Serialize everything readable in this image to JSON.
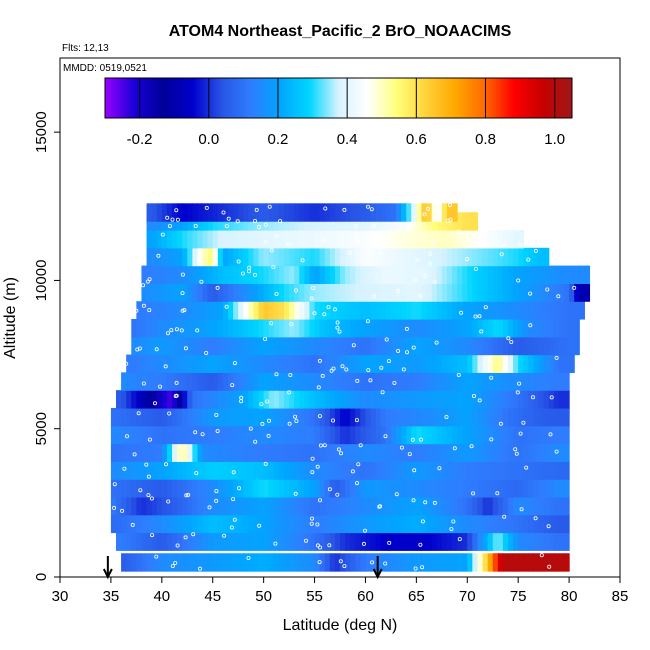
{
  "chart_data": {
    "type": "heatmap",
    "title": "ATOM4 Northeast_Pacific_2 BrO_NOAACIMS",
    "flights_label": "Flts: 12,13",
    "dates_label": "MMDD: 0519,0521",
    "xlabel": "Latitude (deg N)",
    "ylabel": "Altitude (m)",
    "xlim": [
      30,
      85
    ],
    "ylim": [
      0,
      17500
    ],
    "x_ticks": [
      "30",
      "35",
      "40",
      "45",
      "50",
      "55",
      "60",
      "65",
      "70",
      "75",
      "80",
      "85"
    ],
    "y_ticks": [
      "0",
      "5000",
      "10000",
      "15000"
    ],
    "colorbar": {
      "range": [
        -0.3,
        1.05
      ],
      "tick_labels": [
        "-0.2",
        "0.0",
        "0.2",
        "0.4",
        "0.6",
        "0.8",
        "1.0"
      ],
      "colors": [
        "#9a00ff",
        "#1a00d8",
        "#000099",
        "#0000cc",
        "#2855e6",
        "#2f7dff",
        "#00a6ff",
        "#00d5ff",
        "#d6f3ff",
        "#ffffff",
        "#ffff7a",
        "#ffd23a",
        "#ffa800",
        "#ff6a00",
        "#ff0000",
        "#c60000",
        "#a01818"
      ]
    },
    "arrows_at_latitude": [
      34.7,
      61.2
    ],
    "bands": [
      {
        "alt": 500,
        "lat": [
          36.0,
          80.0
        ],
        "values": [
          [
            36,
            0.05
          ],
          [
            40,
            0.15
          ],
          [
            45,
            0.18
          ],
          [
            50,
            0.22
          ],
          [
            55,
            0.15
          ],
          [
            57,
            0.0
          ],
          [
            60,
            0.12
          ],
          [
            65,
            0.18
          ],
          [
            70,
            0.2
          ],
          [
            73.5,
            1.0
          ],
          [
            78,
            1.0
          ]
        ]
      },
      {
        "alt": 1200,
        "lat": [
          35.5,
          80.0
        ],
        "values": [
          [
            36,
            0.12
          ],
          [
            40,
            0.05
          ],
          [
            45,
            0.18
          ],
          [
            50,
            0.2
          ],
          [
            55,
            0.1
          ],
          [
            58,
            0.0
          ],
          [
            62,
            -0.05
          ],
          [
            66,
            -0.05
          ],
          [
            70,
            0.0
          ],
          [
            73,
            0.35
          ],
          [
            75,
            0.15
          ],
          [
            79,
            0.1
          ]
        ]
      },
      {
        "alt": 1800,
        "lat": [
          35.0,
          80.0
        ],
        "values": [
          [
            35,
            0.08
          ],
          [
            40,
            0.15
          ],
          [
            45,
            0.25
          ],
          [
            50,
            0.2
          ],
          [
            55,
            0.12
          ],
          [
            60,
            0.18
          ],
          [
            65,
            0.22
          ],
          [
            70,
            0.15
          ],
          [
            75,
            0.1
          ],
          [
            79,
            0.05
          ]
        ]
      },
      {
        "alt": 2400,
        "lat": [
          35.0,
          80.0
        ],
        "values": [
          [
            35,
            0.12
          ],
          [
            38,
            0.0
          ],
          [
            41,
            0.05
          ],
          [
            45,
            0.15
          ],
          [
            50,
            0.2
          ],
          [
            55,
            0.1
          ],
          [
            60,
            0.15
          ],
          [
            65,
            0.2
          ],
          [
            70,
            0.1
          ],
          [
            72,
            0.0
          ],
          [
            75,
            0.15
          ],
          [
            79,
            0.1
          ]
        ]
      },
      {
        "alt": 3000,
        "lat": [
          35.0,
          80.0
        ],
        "values": [
          [
            35,
            0.1
          ],
          [
            40,
            0.05
          ],
          [
            45,
            0.15
          ],
          [
            50,
            0.3
          ],
          [
            55,
            0.2
          ],
          [
            57,
            0.05
          ],
          [
            60,
            0.18
          ],
          [
            65,
            0.15
          ],
          [
            70,
            0.12
          ],
          [
            75,
            0.08
          ],
          [
            79,
            0.15
          ]
        ]
      },
      {
        "alt": 3600,
        "lat": [
          35.0,
          80.0
        ],
        "values": [
          [
            35,
            0.15
          ],
          [
            40,
            0.2
          ],
          [
            45,
            0.28
          ],
          [
            50,
            0.25
          ],
          [
            55,
            0.15
          ],
          [
            60,
            0.1
          ],
          [
            65,
            0.18
          ],
          [
            70,
            0.12
          ],
          [
            75,
            0.1
          ],
          [
            79,
            0.08
          ]
        ]
      },
      {
        "alt": 4200,
        "lat": [
          35.0,
          80.0
        ],
        "values": [
          [
            35,
            0.1
          ],
          [
            40,
            0.12
          ],
          [
            42,
            0.55
          ],
          [
            44,
            0.15
          ],
          [
            50,
            0.12
          ],
          [
            55,
            0.1
          ],
          [
            60,
            0.15
          ],
          [
            65,
            0.12
          ],
          [
            70,
            0.18
          ],
          [
            75,
            0.1
          ],
          [
            79,
            0.15
          ]
        ]
      },
      {
        "alt": 4800,
        "lat": [
          35.0,
          80.0
        ],
        "values": [
          [
            35,
            0.15
          ],
          [
            40,
            0.1
          ],
          [
            45,
            0.12
          ],
          [
            50,
            0.15
          ],
          [
            55,
            0.12
          ],
          [
            58,
            0.0
          ],
          [
            62,
            0.1
          ],
          [
            65,
            0.3
          ],
          [
            70,
            0.2
          ],
          [
            75,
            0.1
          ],
          [
            79,
            0.12
          ]
        ]
      },
      {
        "alt": 5400,
        "lat": [
          35.0,
          80.0
        ],
        "values": [
          [
            35,
            0.1
          ],
          [
            40,
            0.05
          ],
          [
            45,
            0.18
          ],
          [
            50,
            0.2
          ],
          [
            55,
            0.1
          ],
          [
            58,
            -0.05
          ],
          [
            62,
            0.12
          ],
          [
            66,
            0.15
          ],
          [
            70,
            0.2
          ],
          [
            74,
            0.1
          ],
          [
            78,
            0.05
          ]
        ]
      },
      {
        "alt": 6000,
        "lat": [
          35.5,
          80.0
        ],
        "values": [
          [
            36,
            0.05
          ],
          [
            40,
            -0.2
          ],
          [
            41,
            -0.25
          ],
          [
            43,
            0.1
          ],
          [
            48,
            0.2
          ],
          [
            51,
            0.35
          ],
          [
            55,
            0.25
          ],
          [
            60,
            0.15
          ],
          [
            65,
            0.18
          ],
          [
            70,
            0.2
          ],
          [
            75,
            0.1
          ],
          [
            79,
            0.0
          ]
        ]
      },
      {
        "alt": 6600,
        "lat": [
          36.0,
          80.0
        ],
        "values": [
          [
            36,
            0.15
          ],
          [
            40,
            0.12
          ],
          [
            45,
            0.05
          ],
          [
            50,
            0.2
          ],
          [
            55,
            0.15
          ],
          [
            60,
            0.1
          ],
          [
            65,
            0.12
          ],
          [
            70,
            0.2
          ],
          [
            75,
            0.15
          ],
          [
            79,
            0.12
          ]
        ]
      },
      {
        "alt": 7200,
        "lat": [
          36.5,
          80.5
        ],
        "values": [
          [
            37,
            0.12
          ],
          [
            40,
            0.15
          ],
          [
            45,
            0.2
          ],
          [
            50,
            0.15
          ],
          [
            55,
            0.1
          ],
          [
            60,
            0.2
          ],
          [
            65,
            0.18
          ],
          [
            70,
            0.25
          ],
          [
            73,
            0.55
          ],
          [
            75,
            0.3
          ],
          [
            79,
            0.1
          ]
        ]
      },
      {
        "alt": 7800,
        "lat": [
          37.0,
          81.0
        ],
        "values": [
          [
            37,
            0.15
          ],
          [
            40,
            0.18
          ],
          [
            45,
            0.12
          ],
          [
            50,
            0.2
          ],
          [
            55,
            0.15
          ],
          [
            60,
            0.1
          ],
          [
            65,
            0.2
          ],
          [
            70,
            0.15
          ],
          [
            75,
            0.05
          ],
          [
            80,
            0.1
          ]
        ]
      },
      {
        "alt": 8400,
        "lat": [
          37.0,
          81.0
        ],
        "values": [
          [
            37,
            0.1
          ],
          [
            40,
            0.15
          ],
          [
            45,
            0.2
          ],
          [
            50,
            0.3
          ],
          [
            53,
            0.35
          ],
          [
            56,
            0.25
          ],
          [
            60,
            0.2
          ],
          [
            65,
            0.15
          ],
          [
            70,
            0.2
          ],
          [
            73,
            0.3
          ],
          [
            76,
            0.15
          ],
          [
            80,
            0.1
          ]
        ]
      },
      {
        "alt": 9000,
        "lat": [
          37.5,
          81.5
        ],
        "values": [
          [
            38,
            0.12
          ],
          [
            42,
            0.15
          ],
          [
            46,
            0.2
          ],
          [
            50,
            0.65
          ],
          [
            52,
            0.6
          ],
          [
            55,
            0.3
          ],
          [
            60,
            0.25
          ],
          [
            65,
            0.3
          ],
          [
            70,
            0.2
          ],
          [
            75,
            0.15
          ],
          [
            80,
            0.1
          ]
        ]
      },
      {
        "alt": 9600,
        "lat": [
          38.0,
          82.0
        ],
        "values": [
          [
            38,
            0.15
          ],
          [
            42,
            0.2
          ],
          [
            45,
            0.05
          ],
          [
            48,
            0.15
          ],
          [
            52,
            0.3
          ],
          [
            55,
            0.35
          ],
          [
            60,
            0.38
          ],
          [
            65,
            0.4
          ],
          [
            70,
            0.3
          ],
          [
            75,
            0.2
          ],
          [
            80,
            0.1
          ],
          [
            81,
            -0.1
          ]
        ]
      },
      {
        "alt": 10200,
        "lat": [
          38.0,
          82.0
        ],
        "values": [
          [
            38,
            0.12
          ],
          [
            42,
            0.15
          ],
          [
            46,
            0.25
          ],
          [
            50,
            0.3
          ],
          [
            53,
            0.35
          ],
          [
            55,
            0.2
          ],
          [
            58,
            0.35
          ],
          [
            62,
            0.42
          ],
          [
            66,
            0.4
          ],
          [
            70,
            0.3
          ],
          [
            75,
            0.2
          ],
          [
            80,
            0.15
          ]
        ]
      },
      {
        "alt": 10800,
        "lat": [
          38.5,
          78.0
        ],
        "values": [
          [
            39,
            0.15
          ],
          [
            42,
            0.2
          ],
          [
            44,
            0.5
          ],
          [
            45,
            0.55
          ],
          [
            46,
            0.2
          ],
          [
            50,
            0.35
          ],
          [
            55,
            0.3
          ],
          [
            60,
            0.45
          ],
          [
            65,
            0.4
          ],
          [
            70,
            0.35
          ],
          [
            75,
            0.3
          ],
          [
            77,
            0.25
          ]
        ]
      },
      {
        "alt": 11400,
        "lat": [
          38.5,
          75.5
        ],
        "values": [
          [
            39,
            0.2
          ],
          [
            42,
            0.3
          ],
          [
            46,
            0.38
          ],
          [
            50,
            0.4
          ],
          [
            55,
            0.42
          ],
          [
            60,
            0.45
          ],
          [
            64,
            0.48
          ],
          [
            68,
            0.5
          ],
          [
            72,
            0.45
          ],
          [
            75,
            0.4
          ]
        ]
      },
      {
        "alt": 12000,
        "lat": [
          38.5,
          71.0
        ],
        "values": [
          [
            39,
            0.15
          ],
          [
            42,
            0.2
          ],
          [
            45,
            0.3
          ],
          [
            50,
            0.35
          ],
          [
            55,
            0.38
          ],
          [
            60,
            0.4
          ],
          [
            64,
            0.45
          ],
          [
            67,
            0.55
          ],
          [
            70,
            0.6
          ]
        ]
      },
      {
        "alt": 12300,
        "lat": [
          38.5,
          69.0
        ],
        "values": [
          [
            39,
            0.05
          ],
          [
            42,
            -0.05
          ],
          [
            46,
            0.0
          ],
          [
            50,
            0.05
          ],
          [
            55,
            0.0
          ],
          [
            60,
            0.05
          ],
          [
            63,
            0.1
          ],
          [
            65,
            0.45
          ],
          [
            66,
            0.7
          ],
          [
            67,
            0.4
          ],
          [
            68,
            0.65
          ]
        ]
      }
    ]
  }
}
